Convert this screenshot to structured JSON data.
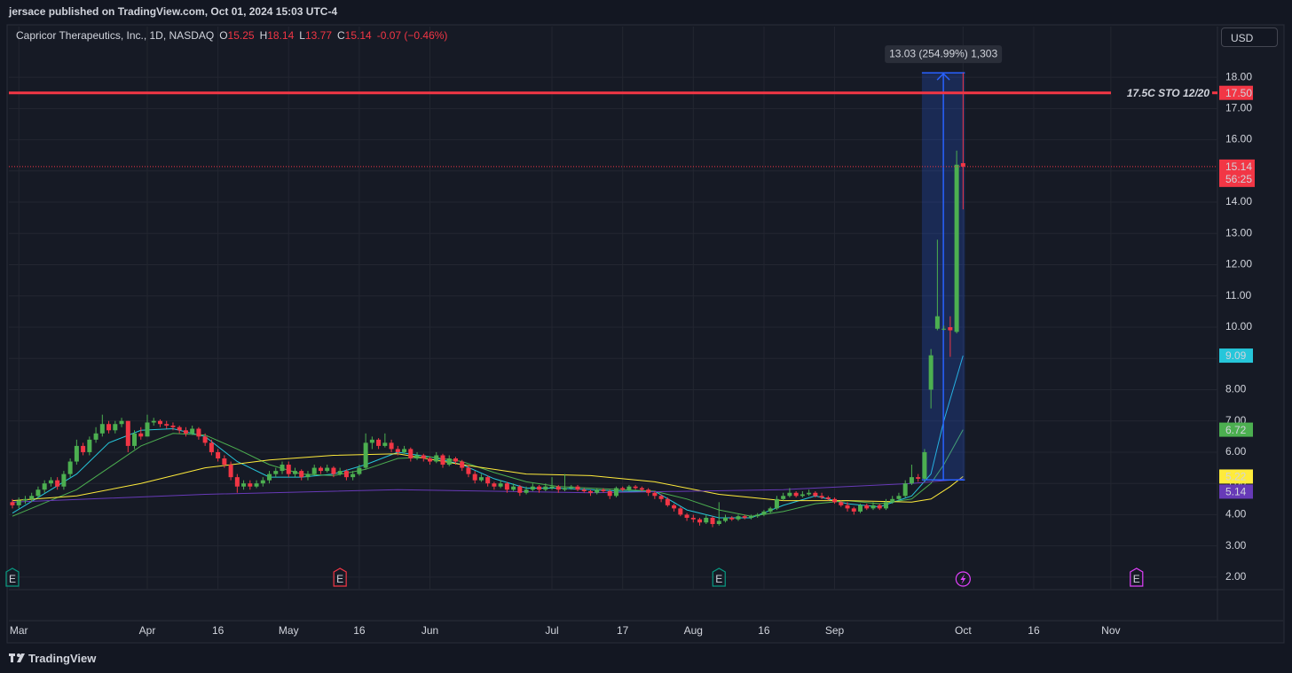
{
  "header": {
    "text": "jersace published on TradingView.com, Oct 01, 2024 15:03 UTC-4"
  },
  "footer": {
    "brand": "TradingView"
  },
  "chart_data": {
    "type": "candlestick",
    "title": "Capricor Therapeutics, Inc., 1D, NASDAQ",
    "ohlc_labels": [
      "O",
      "H",
      "L",
      "C"
    ],
    "change": "-0.07 (−0.46%)",
    "currency": "USD",
    "up_color": "#4caf50",
    "down_color": "#f23645",
    "grid": true,
    "xlim": [
      -0.55,
      187.6
    ],
    "xticks": [
      {
        "value": 1,
        "label": "Mar"
      },
      {
        "value": 21,
        "label": "Apr"
      },
      {
        "value": 32,
        "label": "16"
      },
      {
        "value": 43,
        "label": "May"
      },
      {
        "value": 54,
        "label": "16"
      },
      {
        "value": 65,
        "label": "Jun"
      },
      {
        "value": 84,
        "label": "Jul"
      },
      {
        "value": 95,
        "label": "17"
      },
      {
        "value": 106,
        "label": "Aug"
      },
      {
        "value": 117,
        "label": "16"
      },
      {
        "value": 128,
        "label": "Sep"
      },
      {
        "value": 148,
        "label": "Oct"
      },
      {
        "value": 159,
        "label": "16"
      },
      {
        "value": 171,
        "label": "Nov"
      }
    ],
    "ylim": [
      1.6,
      19.62
    ],
    "yticks": [
      {
        "value": 2,
        "label": "2.00"
      },
      {
        "value": 3,
        "label": "3.00"
      },
      {
        "value": 4,
        "label": "4.00"
      },
      {
        "value": 5,
        "label": "5.00"
      },
      {
        "value": 6,
        "label": "6.00"
      },
      {
        "value": 7,
        "label": "7.00"
      },
      {
        "value": 8,
        "label": "8.00"
      },
      {
        "value": 9,
        "label": "9.00"
      },
      {
        "value": 10,
        "label": "10.00"
      },
      {
        "value": 11,
        "label": "11.00"
      },
      {
        "value": 12,
        "label": "12.00"
      },
      {
        "value": 13,
        "label": "13.00"
      },
      {
        "value": 14,
        "label": "14.00"
      },
      {
        "value": 15,
        "label": "15.00"
      },
      {
        "value": 16,
        "label": "16.00"
      },
      {
        "value": 17,
        "label": "17.00"
      },
      {
        "value": 18,
        "label": "18.00"
      }
    ],
    "candles": [
      [
        4.4,
        4.5,
        4.2,
        4.3
      ],
      [
        4.3,
        4.55,
        4.2,
        4.45
      ],
      [
        4.45,
        4.6,
        4.35,
        4.5
      ],
      [
        4.5,
        4.7,
        4.4,
        4.6
      ],
      [
        4.6,
        4.9,
        4.5,
        4.8
      ],
      [
        4.8,
        5.1,
        4.7,
        5.0
      ],
      [
        5.0,
        5.2,
        4.9,
        5.1
      ],
      [
        5.1,
        5.2,
        4.8,
        4.9
      ],
      [
        4.9,
        5.4,
        4.8,
        5.3
      ],
      [
        5.3,
        5.8,
        5.2,
        5.7
      ],
      [
        5.7,
        6.4,
        5.6,
        6.2
      ],
      [
        6.2,
        6.3,
        5.9,
        6.0
      ],
      [
        6.0,
        6.5,
        5.9,
        6.4
      ],
      [
        6.4,
        6.8,
        6.3,
        6.6
      ],
      [
        6.6,
        7.2,
        6.5,
        6.9
      ],
      [
        6.9,
        7.0,
        6.6,
        6.7
      ],
      [
        6.7,
        7.0,
        6.6,
        6.9
      ],
      [
        6.9,
        7.1,
        6.8,
        7.0
      ],
      [
        7.0,
        7.0,
        6.0,
        6.2
      ],
      [
        6.2,
        6.7,
        6.1,
        6.6
      ],
      [
        6.6,
        6.8,
        6.4,
        6.5
      ],
      [
        6.5,
        7.2,
        6.5,
        6.95
      ],
      [
        6.95,
        7.1,
        6.85,
        7.0
      ],
      [
        7.0,
        7.05,
        6.8,
        6.9
      ],
      [
        6.9,
        7.0,
        6.75,
        6.85
      ],
      [
        6.85,
        6.95,
        6.7,
        6.8
      ],
      [
        6.8,
        6.85,
        6.6,
        6.7
      ],
      [
        6.7,
        6.8,
        6.5,
        6.6
      ],
      [
        6.6,
        6.85,
        6.55,
        6.75
      ],
      [
        6.75,
        6.8,
        6.4,
        6.5
      ],
      [
        6.5,
        6.6,
        6.2,
        6.3
      ],
      [
        6.3,
        6.4,
        5.9,
        6.0
      ],
      [
        6.0,
        6.1,
        5.7,
        5.8
      ],
      [
        5.8,
        5.9,
        5.5,
        5.6
      ],
      [
        5.6,
        5.7,
        5.1,
        5.2
      ],
      [
        5.2,
        5.3,
        4.7,
        4.9
      ],
      [
        4.9,
        5.1,
        4.8,
        5.0
      ],
      [
        5.0,
        5.1,
        4.8,
        4.9
      ],
      [
        4.9,
        5.1,
        4.85,
        5.0
      ],
      [
        5.0,
        5.2,
        4.9,
        5.1
      ],
      [
        5.1,
        5.4,
        5.0,
        5.3
      ],
      [
        5.3,
        5.5,
        5.2,
        5.4
      ],
      [
        5.4,
        5.7,
        5.3,
        5.6
      ],
      [
        5.6,
        5.7,
        5.2,
        5.3
      ],
      [
        5.3,
        5.5,
        5.2,
        5.4
      ],
      [
        5.4,
        5.45,
        5.1,
        5.2
      ],
      [
        5.2,
        5.4,
        5.1,
        5.3
      ],
      [
        5.3,
        5.6,
        5.25,
        5.5
      ],
      [
        5.5,
        5.55,
        5.3,
        5.4
      ],
      [
        5.4,
        5.6,
        5.35,
        5.5
      ],
      [
        5.5,
        5.55,
        5.2,
        5.3
      ],
      [
        5.3,
        5.5,
        5.25,
        5.4
      ],
      [
        5.4,
        5.45,
        5.1,
        5.2
      ],
      [
        5.2,
        5.4,
        5.1,
        5.3
      ],
      [
        5.3,
        5.6,
        5.25,
        5.5
      ],
      [
        5.5,
        6.6,
        5.45,
        6.3
      ],
      [
        6.3,
        6.5,
        6.1,
        6.4
      ],
      [
        6.4,
        6.45,
        6.1,
        6.2
      ],
      [
        6.2,
        6.6,
        6.15,
        6.3
      ],
      [
        6.3,
        6.4,
        6.0,
        6.1
      ],
      [
        6.1,
        6.2,
        5.9,
        6.0
      ],
      [
        6.0,
        6.2,
        5.95,
        6.1
      ],
      [
        6.1,
        6.15,
        5.7,
        5.8
      ],
      [
        5.8,
        6.0,
        5.75,
        5.9
      ],
      [
        5.9,
        5.95,
        5.7,
        5.8
      ],
      [
        5.8,
        5.85,
        5.6,
        5.7
      ],
      [
        5.7,
        6.0,
        5.65,
        5.9
      ],
      [
        5.9,
        5.95,
        5.5,
        5.6
      ],
      [
        5.6,
        5.9,
        5.55,
        5.8
      ],
      [
        5.8,
        5.85,
        5.6,
        5.7
      ],
      [
        5.7,
        5.75,
        5.4,
        5.5
      ],
      [
        5.5,
        5.6,
        5.2,
        5.3
      ],
      [
        5.3,
        5.4,
        5.0,
        5.1
      ],
      [
        5.1,
        5.3,
        5.05,
        5.2
      ],
      [
        5.2,
        5.25,
        4.9,
        5.0
      ],
      [
        5.0,
        5.05,
        4.8,
        4.9
      ],
      [
        4.9,
        5.1,
        4.85,
        5.0
      ],
      [
        5.0,
        5.05,
        4.7,
        4.8
      ],
      [
        4.8,
        5.0,
        4.75,
        4.9
      ],
      [
        4.9,
        4.95,
        4.6,
        4.7
      ],
      [
        4.7,
        4.9,
        4.65,
        4.8
      ],
      [
        4.8,
        5.0,
        4.75,
        4.9
      ],
      [
        4.9,
        4.95,
        4.7,
        4.8
      ],
      [
        4.8,
        5.0,
        4.75,
        4.9
      ],
      [
        4.85,
        5.2,
        4.8,
        4.9
      ],
      [
        4.9,
        4.95,
        4.7,
        4.8
      ],
      [
        4.8,
        5.3,
        4.75,
        4.85
      ],
      [
        4.85,
        4.95,
        4.8,
        4.9
      ],
      [
        4.9,
        4.95,
        4.75,
        4.8
      ],
      [
        4.8,
        4.85,
        4.7,
        4.75
      ],
      [
        4.75,
        4.8,
        4.6,
        4.7
      ],
      [
        4.7,
        4.85,
        4.65,
        4.8
      ],
      [
        4.8,
        4.85,
        4.7,
        4.75
      ],
      [
        4.75,
        4.8,
        4.5,
        4.6
      ],
      [
        4.6,
        4.9,
        4.55,
        4.85
      ],
      [
        4.85,
        4.9,
        4.75,
        4.8
      ],
      [
        4.8,
        4.95,
        4.75,
        4.9
      ],
      [
        4.9,
        4.95,
        4.8,
        4.85
      ],
      [
        4.85,
        4.9,
        4.75,
        4.8
      ],
      [
        4.8,
        4.85,
        4.6,
        4.7
      ],
      [
        4.7,
        4.75,
        4.5,
        4.6
      ],
      [
        4.6,
        4.65,
        4.4,
        4.5
      ],
      [
        4.5,
        4.55,
        4.25,
        4.3
      ],
      [
        4.3,
        4.35,
        4.1,
        4.2
      ],
      [
        4.2,
        4.25,
        3.95,
        4.0
      ],
      [
        4.0,
        4.05,
        3.8,
        3.9
      ],
      [
        3.9,
        4.0,
        3.75,
        3.85
      ],
      [
        3.85,
        3.9,
        3.65,
        3.75
      ],
      [
        3.75,
        4.0,
        3.7,
        3.9
      ],
      [
        3.9,
        3.95,
        3.6,
        3.7
      ],
      [
        3.7,
        4.4,
        3.65,
        3.8
      ],
      [
        3.8,
        4.0,
        3.75,
        3.9
      ],
      [
        3.9,
        3.95,
        3.8,
        3.85
      ],
      [
        3.85,
        4.0,
        3.8,
        3.95
      ],
      [
        3.95,
        4.0,
        3.85,
        3.9
      ],
      [
        3.9,
        4.0,
        3.85,
        3.95
      ],
      [
        3.95,
        4.05,
        3.9,
        4.0
      ],
      [
        4.0,
        4.15,
        3.95,
        4.1
      ],
      [
        4.1,
        4.25,
        4.05,
        4.2
      ],
      [
        4.2,
        4.6,
        4.15,
        4.5
      ],
      [
        4.5,
        4.7,
        4.45,
        4.6
      ],
      [
        4.6,
        4.85,
        4.55,
        4.7
      ],
      [
        4.7,
        4.75,
        4.55,
        4.6
      ],
      [
        4.6,
        4.75,
        4.55,
        4.65
      ],
      [
        4.65,
        4.8,
        4.6,
        4.7
      ],
      [
        4.7,
        4.75,
        4.55,
        4.6
      ],
      [
        4.6,
        4.7,
        4.5,
        4.55
      ],
      [
        4.55,
        4.6,
        4.45,
        4.5
      ],
      [
        4.5,
        4.55,
        4.35,
        4.4
      ],
      [
        4.4,
        4.45,
        4.25,
        4.3
      ],
      [
        4.3,
        4.4,
        4.1,
        4.2
      ],
      [
        4.2,
        4.25,
        4.0,
        4.1
      ],
      [
        4.1,
        4.35,
        4.05,
        4.3
      ],
      [
        4.3,
        4.35,
        4.15,
        4.2
      ],
      [
        4.2,
        4.4,
        4.15,
        4.3
      ],
      [
        4.3,
        4.35,
        4.15,
        4.2
      ],
      [
        4.2,
        4.5,
        4.15,
        4.4
      ],
      [
        4.4,
        4.6,
        4.35,
        4.5
      ],
      [
        4.5,
        4.7,
        4.45,
        4.6
      ],
      [
        4.6,
        5.1,
        4.55,
        5.0
      ],
      [
        5.0,
        5.6,
        4.95,
        5.2
      ],
      [
        5.2,
        5.3,
        5.05,
        5.15
      ],
      [
        5.15,
        6.1,
        5.1,
        6.0
      ],
      [
        8.0,
        9.3,
        7.4,
        9.1
      ],
      [
        9.95,
        12.8,
        9.9,
        10.35
      ],
      [
        9.95,
        10.05,
        9.9,
        9.95
      ],
      [
        10.0,
        10.35,
        9.05,
        9.9
      ],
      [
        9.85,
        15.65,
        9.8,
        15.2
      ],
      [
        15.25,
        18.14,
        13.77,
        15.14
      ]
    ],
    "series": [
      {
        "color": "#26c6da",
        "x": [
          0,
          10,
          15,
          20,
          25,
          30,
          35,
          40,
          45,
          50,
          55,
          60,
          65,
          70,
          75,
          80,
          85,
          90,
          95,
          100,
          105,
          110,
          115,
          120,
          125,
          130,
          135,
          140,
          143,
          145,
          148
        ],
        "values": [
          4.05,
          5.3,
          6.3,
          6.7,
          6.75,
          6.5,
          5.7,
          5.2,
          5.2,
          5.3,
          5.6,
          6.0,
          5.85,
          5.6,
          5.15,
          4.85,
          4.85,
          4.8,
          4.75,
          4.75,
          4.15,
          3.9,
          3.9,
          4.3,
          4.6,
          4.35,
          4.25,
          4.6,
          5.3,
          7.0,
          9.09
        ]
      },
      {
        "color": "#4caf50",
        "x": [
          0,
          10,
          15,
          20,
          25,
          30,
          35,
          40,
          45,
          50,
          55,
          60,
          65,
          70,
          75,
          80,
          85,
          90,
          95,
          100,
          105,
          110,
          115,
          120,
          125,
          130,
          135,
          140,
          143,
          145,
          148
        ],
        "values": [
          3.95,
          4.8,
          5.5,
          6.2,
          6.6,
          6.55,
          6.1,
          5.6,
          5.3,
          5.25,
          5.45,
          5.8,
          5.85,
          5.7,
          5.35,
          5.05,
          4.9,
          4.85,
          4.8,
          4.75,
          4.5,
          4.15,
          3.95,
          4.1,
          4.35,
          4.45,
          4.35,
          4.5,
          5.0,
          5.6,
          6.72
        ]
      },
      {
        "color": "#ffeb3b",
        "x": [
          0,
          10,
          20,
          30,
          40,
          50,
          60,
          70,
          80,
          90,
          100,
          110,
          120,
          130,
          140,
          143,
          146,
          148
        ],
        "values": [
          4.45,
          4.6,
          5.0,
          5.5,
          5.75,
          5.9,
          5.95,
          5.6,
          5.3,
          5.25,
          5.05,
          4.65,
          4.45,
          4.45,
          4.4,
          4.5,
          4.9,
          5.22
        ]
      },
      {
        "color": "#673ab7",
        "x": [
          0,
          30,
          60,
          90,
          120,
          140,
          148
        ],
        "values": [
          4.4,
          4.65,
          4.8,
          4.7,
          4.8,
          5.0,
          5.14
        ]
      }
    ],
    "horizontal_lines": [
      {
        "value": 17.5,
        "value_label": "17.50",
        "label": "17.5C STO 12/20",
        "color": "#f23645"
      }
    ],
    "last_price": {
      "value": 15.14,
      "countdown": "56:25",
      "color": "#f23645"
    },
    "measure": {
      "x": [
        142,
        148
      ],
      "y": [
        5.11,
        18.14
      ],
      "label": "13.03 (254.99%) 1,303",
      "color": "#2962ff"
    },
    "events": [
      {
        "x": 0,
        "label": "E",
        "color": "#089981"
      },
      {
        "x": 51,
        "label": "E",
        "color": "#f23645"
      },
      {
        "x": 110,
        "label": "E",
        "color": "#089981"
      },
      {
        "x": 175,
        "label": "E",
        "color": "#e040fb"
      }
    ]
  }
}
